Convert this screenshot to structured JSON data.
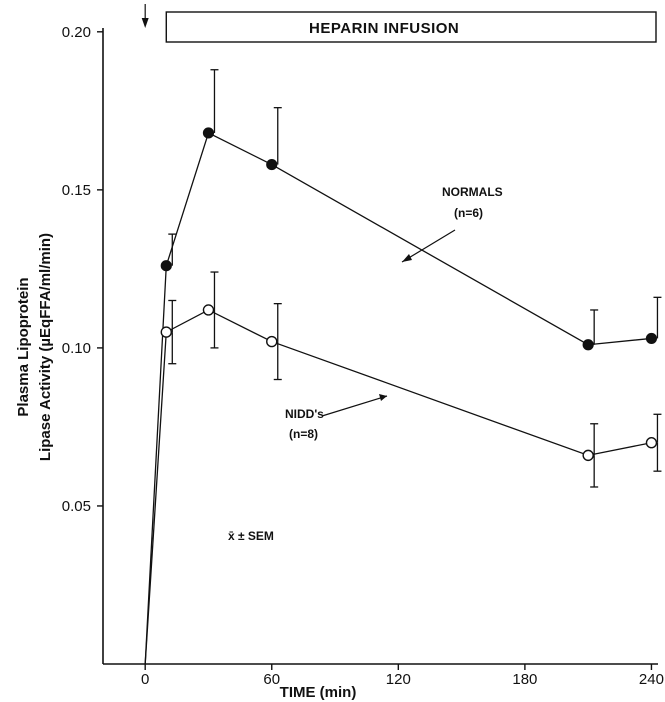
{
  "chart_data": {
    "type": "line",
    "banner": "HEPARIN INFUSION",
    "xlabel": "TIME  (min)",
    "ylabel_line1": "Plasma Lipoprotein",
    "ylabel_line2": "Lipase  Activity  (µEqFFA/ml/min)",
    "xlim": [
      -20,
      245
    ],
    "ylim": [
      0,
      0.205
    ],
    "xticks": [
      0,
      60,
      120,
      180,
      240
    ],
    "xtick_labels": [
      "0",
      "60",
      "120",
      "180",
      "240"
    ],
    "yticks": [
      0.05,
      0.1,
      0.15,
      0.2
    ],
    "ytick_labels": [
      "0.05",
      "0.10",
      "0.15",
      "0.20"
    ],
    "infusion_start": 0,
    "banner_range": [
      10,
      245
    ],
    "stat_note": "x̄ ± SEM",
    "series": [
      {
        "name": "NORMALS",
        "label_line1": "NORMALS",
        "label_line2": "(n=6)",
        "marker": "filled",
        "x": [
          0,
          10,
          30,
          60,
          210,
          240
        ],
        "y": [
          0,
          0.126,
          0.168,
          0.158,
          0.101,
          0.103
        ],
        "err": [
          null,
          0.01,
          0.02,
          0.018,
          0.011,
          0.013
        ]
      },
      {
        "name": "NIDD's",
        "label_line1": "NIDD's",
        "label_line2": "(n=8)",
        "marker": "open",
        "x": [
          0,
          10,
          30,
          60,
          210,
          240
        ],
        "y": [
          0,
          0.105,
          0.112,
          0.102,
          0.066,
          0.07
        ],
        "err": [
          null,
          0.01,
          0.012,
          0.012,
          0.01,
          0.009
        ]
      }
    ]
  }
}
